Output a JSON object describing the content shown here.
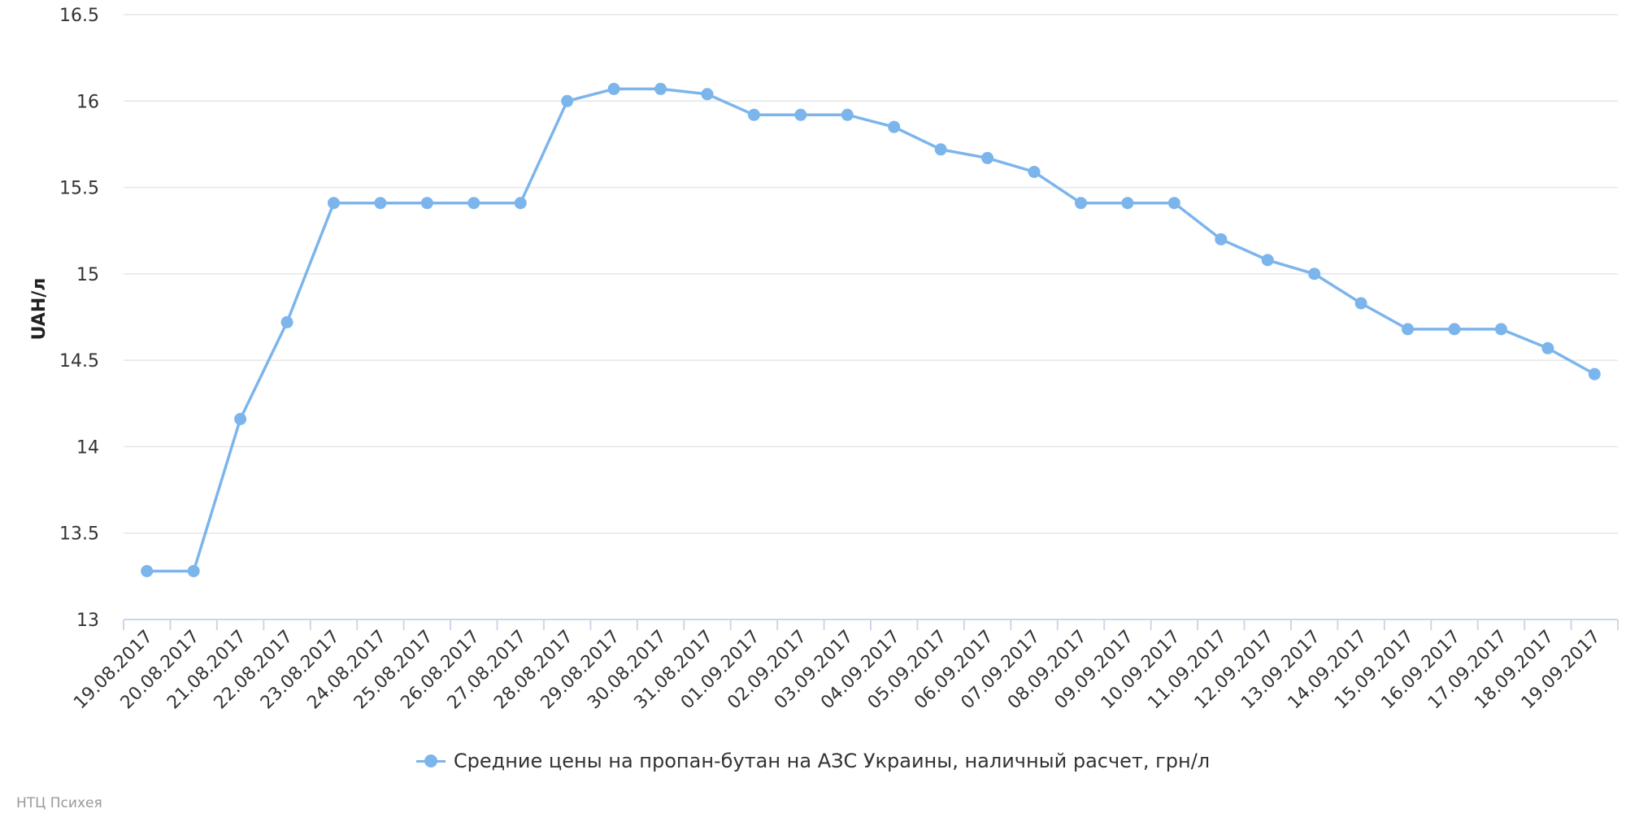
{
  "chart_data": {
    "type": "line",
    "title": "",
    "xlabel": "",
    "ylabel": "UAH/л",
    "ylim": [
      13,
      16.5
    ],
    "yticks": [
      "13",
      "13.5",
      "14",
      "14.5",
      "15",
      "15.5",
      "16",
      "16.5"
    ],
    "grid": true,
    "legend_position": "bottom-center",
    "categories": [
      "19.08.2017",
      "20.08.2017",
      "21.08.2017",
      "22.08.2017",
      "23.08.2017",
      "24.08.2017",
      "25.08.2017",
      "26.08.2017",
      "27.08.2017",
      "28.08.2017",
      "29.08.2017",
      "30.08.2017",
      "31.08.2017",
      "01.09.2017",
      "02.09.2017",
      "03.09.2017",
      "04.09.2017",
      "05.09.2017",
      "06.09.2017",
      "07.09.2017",
      "08.09.2017",
      "09.09.2017",
      "10.09.2017",
      "11.09.2017",
      "12.09.2017",
      "13.09.2017",
      "14.09.2017",
      "15.09.2017",
      "16.09.2017",
      "17.09.2017",
      "18.09.2017",
      "19.09.2017"
    ],
    "series": [
      {
        "name": "Средние цены на пропан-бутан на АЗС Украины, наличный расчет, грн/л",
        "color": "#7cb5ec",
        "values": [
          13.28,
          13.28,
          14.16,
          14.72,
          15.41,
          15.41,
          15.41,
          15.41,
          15.41,
          16.0,
          16.07,
          16.07,
          16.04,
          15.92,
          15.92,
          15.92,
          15.85,
          15.72,
          15.67,
          15.59,
          15.41,
          15.41,
          15.41,
          15.2,
          15.08,
          15.0,
          14.83,
          14.68,
          14.68,
          14.68,
          14.57,
          14.42
        ]
      }
    ]
  },
  "credits": "НТЦ Психея"
}
